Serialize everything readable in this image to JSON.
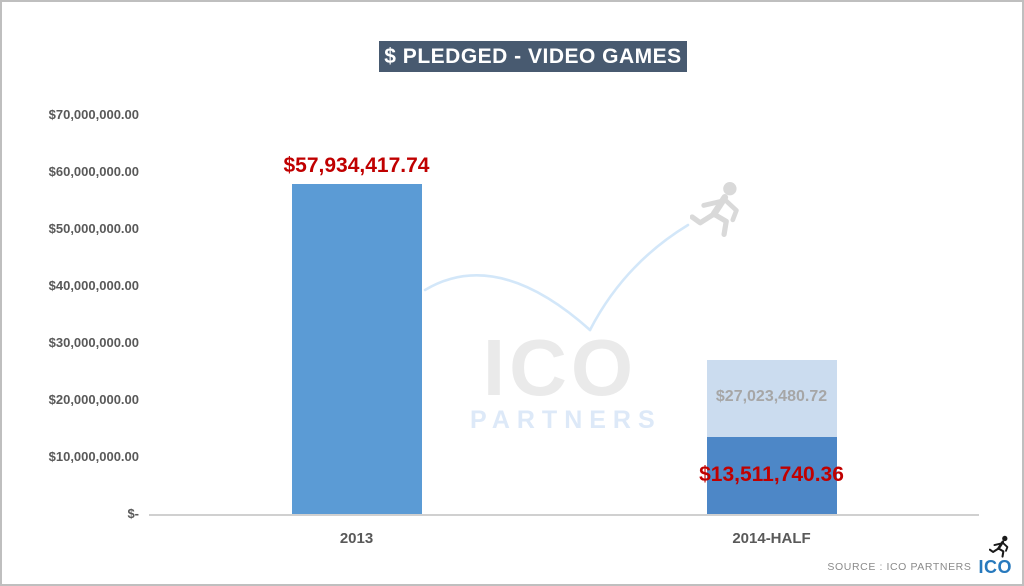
{
  "title": {
    "text": "$ PLEDGED - VIDEO GAMES"
  },
  "watermark": {
    "line1": "ICO",
    "line2": "PARTNERS",
    "arc_color": "#D3E7F9",
    "runner_color": "#D9D9D9"
  },
  "footer": {
    "source": "SOURCE : ICO PARTNERS",
    "logo_text": "ICO",
    "logo_color": "#2779BD",
    "logo_runner_color": "#1a1a1a"
  },
  "colors": {
    "title_bg": "#485A70",
    "axis_line": "#d0d0d0",
    "tick_text": "#595959",
    "label_red": "#C00000",
    "label_gray": "#A6A6A6",
    "bar_blue": "#5B9BD5",
    "bar_dark_blue": "#4D87C7",
    "bar_light_blue": "#CBDCEF"
  },
  "chart_data": {
    "type": "bar",
    "title": "$ PLEDGED - VIDEO GAMES",
    "xlabel": "",
    "ylabel": "",
    "ylim": [
      0,
      70000000
    ],
    "ytick_interval": 10000000,
    "grid": false,
    "legend": null,
    "yticks": [
      {
        "value": 70000000,
        "label": "$70,000,000.00"
      },
      {
        "value": 60000000,
        "label": "$60,000,000.00"
      },
      {
        "value": 50000000,
        "label": "$50,000,000.00"
      },
      {
        "value": 40000000,
        "label": "$40,000,000.00"
      },
      {
        "value": 30000000,
        "label": "$30,000,000.00"
      },
      {
        "value": 20000000,
        "label": "$20,000,000.00"
      },
      {
        "value": 10000000,
        "label": "$10,000,000.00"
      },
      {
        "value": 0,
        "label": "$-"
      }
    ],
    "categories": [
      "2013",
      "2014-HALF"
    ],
    "bars": [
      {
        "category": "2013",
        "segments": [
          {
            "name": "pledged-2013",
            "value": 57934417.74,
            "color": "#5B9BD5",
            "data_label": {
              "text": "$57,934,417.74",
              "color": "#C00000",
              "position": "above",
              "size": "lg"
            }
          }
        ]
      },
      {
        "category": "2014-HALF",
        "segments": [
          {
            "name": "pledged-2014-half-actual",
            "value": 13511740.36,
            "color": "#4D87C7",
            "data_label": {
              "text": "$13,511,740.36",
              "color": "#C00000",
              "position": "inside",
              "size": "lg"
            }
          },
          {
            "name": "pledged-2014-projected-remainder",
            "value": 13511740.36,
            "cumulative_top": 27023480.72,
            "color": "#CBDCEF",
            "data_label": {
              "text": "$27,023,480.72",
              "color": "#A6A6A6",
              "position": "inside",
              "size": "md"
            }
          }
        ]
      }
    ]
  }
}
